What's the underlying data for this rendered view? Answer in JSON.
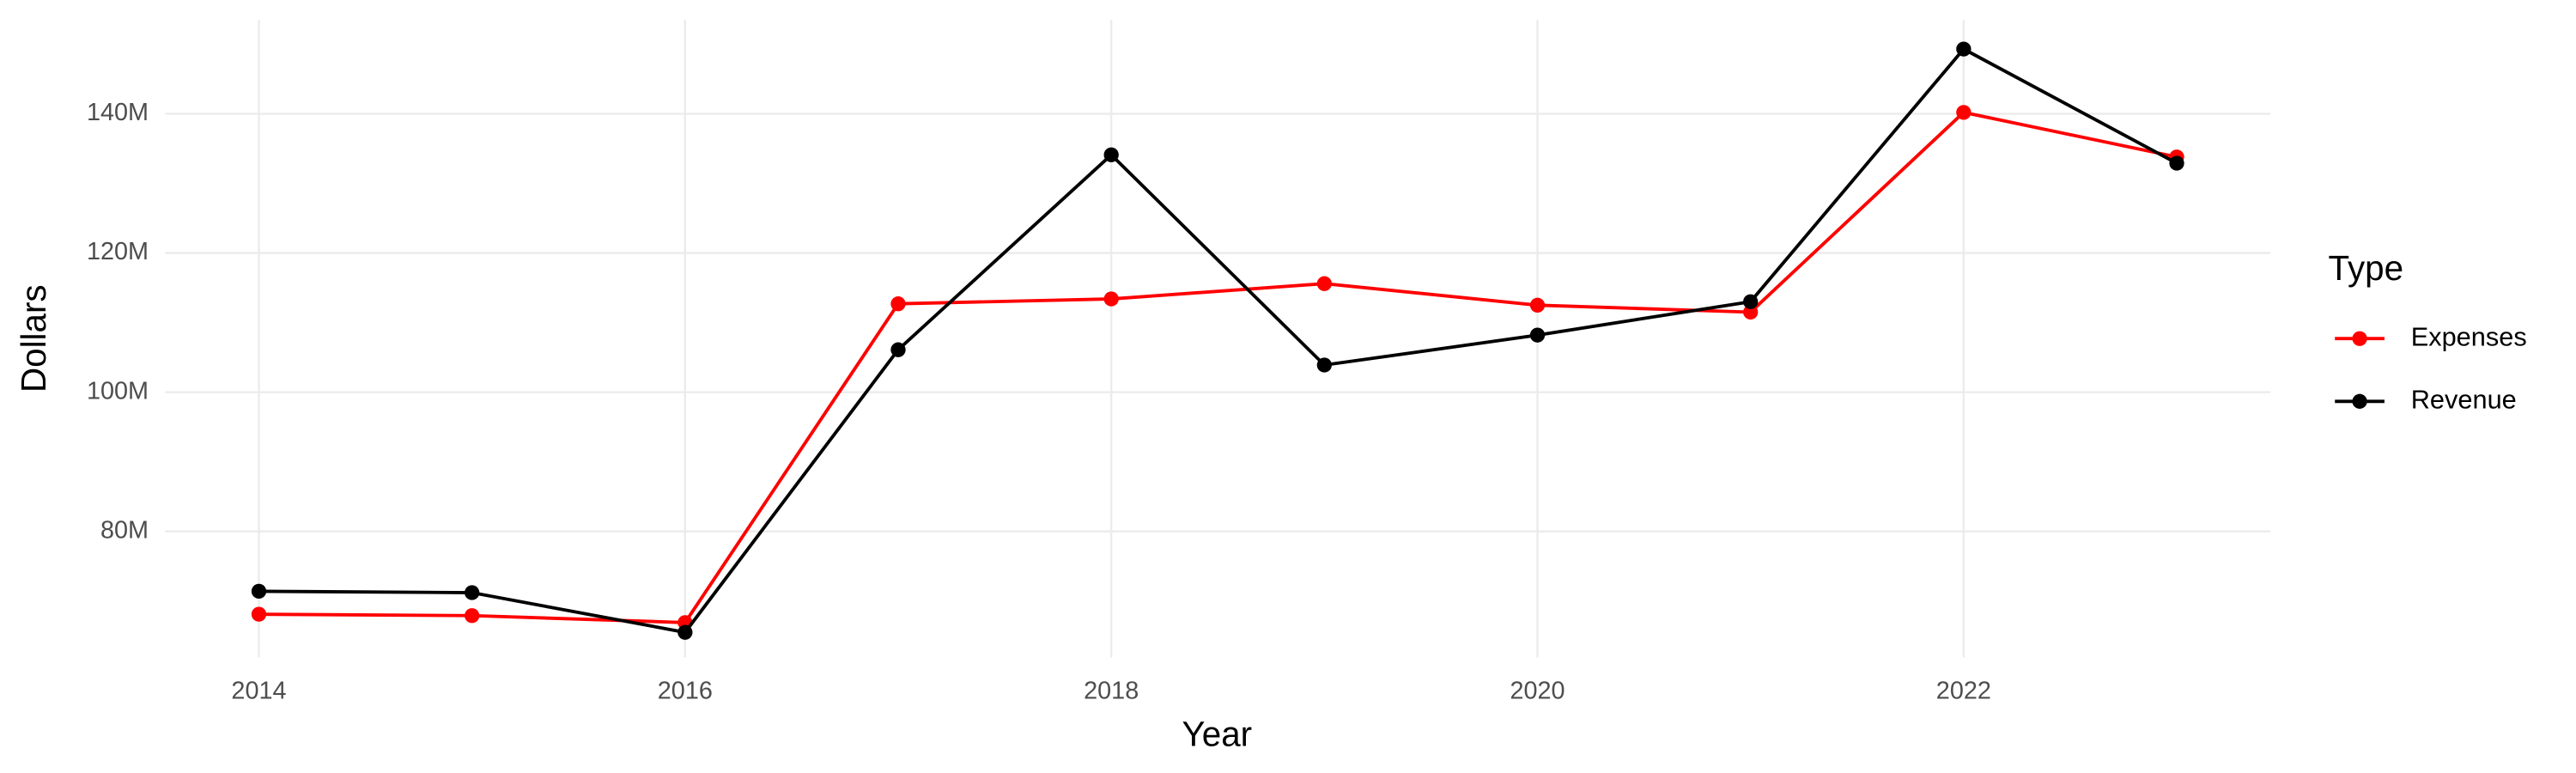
{
  "chart_data": {
    "type": "line",
    "x_label": "Year",
    "y_label": "Dollars",
    "legend_title": "Type",
    "x": [
      2014,
      2015,
      2016,
      2017,
      2018,
      2019,
      2020,
      2021,
      2022,
      2023
    ],
    "series": [
      {
        "name": "Expenses",
        "color": "#ff0000",
        "values": [
          68100000,
          67900000,
          66900000,
          112700000,
          113400000,
          115600000,
          112500000,
          111500000,
          140200000,
          133800000
        ]
      },
      {
        "name": "Revenue",
        "color": "#000000",
        "values": [
          71400000,
          71200000,
          65500000,
          106100000,
          134100000,
          103900000,
          108200000,
          113000000,
          149300000,
          132900000
        ]
      }
    ],
    "xlim": [
      2013.56,
      2023.44
    ],
    "xticks": [
      2014,
      2016,
      2018,
      2020,
      2022
    ],
    "ylim": [
      61900000,
      153500000
    ],
    "yticks": [
      {
        "value": 80000000,
        "label": "80M"
      },
      {
        "value": 100000000,
        "label": "100M"
      },
      {
        "value": 120000000,
        "label": "120M"
      },
      {
        "value": 140000000,
        "label": "140M"
      }
    ],
    "grid": true,
    "legend_position": "right"
  }
}
